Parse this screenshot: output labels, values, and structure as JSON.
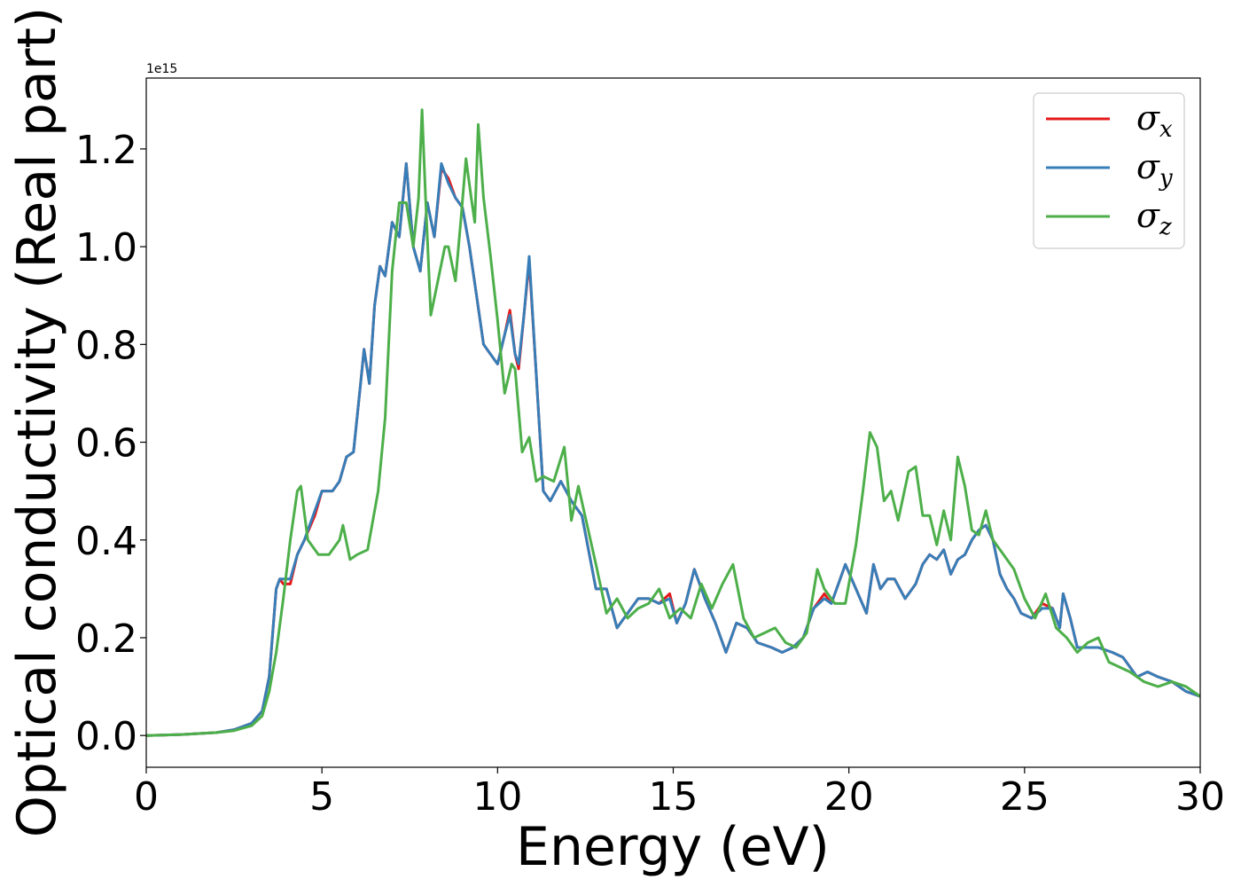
{
  "chart_data": {
    "type": "line",
    "title": "",
    "xlabel": "Energy (eV)",
    "ylabel": "Optical conductivity (Real part)",
    "y_offset_text": "1e15",
    "xlim": [
      0,
      30
    ],
    "ylim": [
      -0.065,
      1.345
    ],
    "x_ticks": [
      0,
      5,
      10,
      15,
      20,
      25,
      30
    ],
    "x_tick_labels": [
      "0",
      "5",
      "10",
      "15",
      "20",
      "25",
      "30"
    ],
    "y_ticks": [
      0.0,
      0.2,
      0.4,
      0.6,
      0.8,
      1.0,
      1.2
    ],
    "y_tick_labels": [
      "0.0",
      "0.2",
      "0.4",
      "0.6",
      "0.8",
      "1.0",
      "1.2"
    ],
    "grid": false,
    "legend_position": "top-right",
    "series": [
      {
        "name": "σx",
        "symbol": "σ",
        "subscript": "x",
        "color": "#e41a1c",
        "x": [
          0,
          1,
          2,
          2.5,
          3,
          3.3,
          3.5,
          3.7,
          3.8,
          3.9,
          4.1,
          4.3,
          4.5,
          4.8,
          5.0,
          5.3,
          5.5,
          5.7,
          5.9,
          6.1,
          6.2,
          6.35,
          6.5,
          6.65,
          6.8,
          7.0,
          7.2,
          7.4,
          7.6,
          7.8,
          8.0,
          8.2,
          8.4,
          8.6,
          8.8,
          9.0,
          9.2,
          9.4,
          9.6,
          9.8,
          10.0,
          10.2,
          10.35,
          10.5,
          10.6,
          10.75,
          10.9,
          11.1,
          11.3,
          11.5,
          11.8,
          12.1,
          12.4,
          12.8,
          13.1,
          13.4,
          13.7,
          14.0,
          14.3,
          14.6,
          14.9,
          15.1,
          15.35,
          15.6,
          15.9,
          16.2,
          16.5,
          16.8,
          17.1,
          17.4,
          17.8,
          18.1,
          18.4,
          18.7,
          19.0,
          19.3,
          19.5,
          19.7,
          19.9,
          20.2,
          20.5,
          20.7,
          20.9,
          21.1,
          21.3,
          21.6,
          21.9,
          22.1,
          22.3,
          22.5,
          22.7,
          22.9,
          23.1,
          23.3,
          23.5,
          23.7,
          23.9,
          24.1,
          24.3,
          24.5,
          24.7,
          24.9,
          25.2,
          25.5,
          25.8,
          26.0,
          26.1,
          26.3,
          26.5,
          26.8,
          27.1,
          27.5,
          27.8,
          28.2,
          28.5,
          28.8,
          29.2,
          29.6,
          30
        ],
        "y": [
          0,
          0.002,
          0.006,
          0.012,
          0.025,
          0.05,
          0.12,
          0.3,
          0.32,
          0.31,
          0.31,
          0.37,
          0.4,
          0.45,
          0.5,
          0.5,
          0.52,
          0.57,
          0.58,
          0.72,
          0.79,
          0.72,
          0.88,
          0.96,
          0.94,
          1.05,
          1.02,
          1.17,
          1.0,
          0.95,
          1.09,
          1.02,
          1.16,
          1.14,
          1.1,
          1.08,
          1.0,
          0.9,
          0.8,
          0.78,
          0.76,
          0.82,
          0.87,
          0.78,
          0.75,
          0.86,
          0.97,
          0.74,
          0.5,
          0.48,
          0.52,
          0.48,
          0.45,
          0.3,
          0.3,
          0.22,
          0.25,
          0.28,
          0.28,
          0.27,
          0.29,
          0.23,
          0.27,
          0.34,
          0.28,
          0.23,
          0.17,
          0.23,
          0.22,
          0.19,
          0.18,
          0.17,
          0.18,
          0.2,
          0.26,
          0.29,
          0.27,
          0.31,
          0.35,
          0.3,
          0.25,
          0.35,
          0.3,
          0.32,
          0.32,
          0.28,
          0.31,
          0.35,
          0.37,
          0.36,
          0.38,
          0.33,
          0.36,
          0.37,
          0.4,
          0.42,
          0.43,
          0.4,
          0.33,
          0.3,
          0.28,
          0.25,
          0.24,
          0.27,
          0.26,
          0.22,
          0.29,
          0.24,
          0.18,
          0.18,
          0.18,
          0.17,
          0.16,
          0.12,
          0.13,
          0.12,
          0.11,
          0.09,
          0.08
        ]
      },
      {
        "name": "σy",
        "symbol": "σ",
        "subscript": "y",
        "color": "#377eb8",
        "x": [
          0,
          1,
          2,
          2.5,
          3,
          3.3,
          3.5,
          3.7,
          3.8,
          3.9,
          4.1,
          4.3,
          4.5,
          4.8,
          5.0,
          5.3,
          5.5,
          5.7,
          5.9,
          6.1,
          6.2,
          6.35,
          6.5,
          6.65,
          6.8,
          7.0,
          7.2,
          7.4,
          7.6,
          7.8,
          8.0,
          8.2,
          8.4,
          8.6,
          8.8,
          9.0,
          9.2,
          9.4,
          9.6,
          9.8,
          10.0,
          10.2,
          10.35,
          10.5,
          10.6,
          10.75,
          10.9,
          11.1,
          11.3,
          11.5,
          11.8,
          12.1,
          12.4,
          12.8,
          13.1,
          13.4,
          13.7,
          14.0,
          14.3,
          14.6,
          14.9,
          15.1,
          15.35,
          15.6,
          15.9,
          16.2,
          16.5,
          16.8,
          17.1,
          17.4,
          17.8,
          18.1,
          18.4,
          18.7,
          19.0,
          19.3,
          19.5,
          19.7,
          19.9,
          20.2,
          20.5,
          20.7,
          20.9,
          21.1,
          21.3,
          21.6,
          21.9,
          22.1,
          22.3,
          22.5,
          22.7,
          22.9,
          23.1,
          23.3,
          23.5,
          23.7,
          23.9,
          24.1,
          24.3,
          24.5,
          24.7,
          24.9,
          25.2,
          25.5,
          25.8,
          26.0,
          26.1,
          26.3,
          26.5,
          26.8,
          27.1,
          27.5,
          27.8,
          28.2,
          28.5,
          28.8,
          29.2,
          29.6,
          30
        ],
        "y": [
          0,
          0.002,
          0.006,
          0.012,
          0.025,
          0.05,
          0.12,
          0.3,
          0.32,
          0.32,
          0.32,
          0.37,
          0.4,
          0.46,
          0.5,
          0.5,
          0.52,
          0.57,
          0.58,
          0.72,
          0.79,
          0.72,
          0.88,
          0.96,
          0.94,
          1.05,
          1.02,
          1.17,
          1.0,
          0.95,
          1.09,
          1.02,
          1.17,
          1.13,
          1.1,
          1.08,
          1.0,
          0.9,
          0.8,
          0.78,
          0.76,
          0.82,
          0.86,
          0.78,
          0.76,
          0.86,
          0.98,
          0.74,
          0.5,
          0.48,
          0.52,
          0.48,
          0.45,
          0.3,
          0.3,
          0.22,
          0.25,
          0.28,
          0.28,
          0.27,
          0.28,
          0.23,
          0.27,
          0.34,
          0.28,
          0.23,
          0.17,
          0.23,
          0.22,
          0.19,
          0.18,
          0.17,
          0.18,
          0.2,
          0.26,
          0.28,
          0.27,
          0.31,
          0.35,
          0.3,
          0.25,
          0.35,
          0.3,
          0.32,
          0.32,
          0.28,
          0.31,
          0.35,
          0.37,
          0.36,
          0.38,
          0.33,
          0.36,
          0.37,
          0.4,
          0.42,
          0.43,
          0.4,
          0.33,
          0.3,
          0.28,
          0.25,
          0.24,
          0.26,
          0.26,
          0.22,
          0.29,
          0.24,
          0.18,
          0.18,
          0.18,
          0.17,
          0.16,
          0.12,
          0.13,
          0.12,
          0.11,
          0.09,
          0.08
        ]
      },
      {
        "name": "σz",
        "symbol": "σ",
        "subscript": "z",
        "color": "#4daf4a",
        "x": [
          0,
          1,
          2,
          2.5,
          3,
          3.3,
          3.5,
          3.7,
          3.9,
          4.1,
          4.3,
          4.4,
          4.6,
          4.9,
          5.2,
          5.5,
          5.6,
          5.8,
          6.0,
          6.3,
          6.6,
          6.8,
          7.0,
          7.2,
          7.4,
          7.6,
          7.75,
          7.85,
          7.95,
          8.1,
          8.3,
          8.5,
          8.6,
          8.8,
          8.95,
          9.1,
          9.25,
          9.35,
          9.45,
          9.6,
          9.8,
          10.0,
          10.2,
          10.4,
          10.5,
          10.7,
          10.9,
          11.1,
          11.3,
          11.6,
          11.9,
          12.1,
          12.3,
          12.8,
          13.1,
          13.4,
          13.7,
          14.0,
          14.3,
          14.6,
          14.9,
          15.2,
          15.5,
          15.8,
          16.1,
          16.4,
          16.7,
          17.0,
          17.3,
          17.6,
          17.9,
          18.2,
          18.5,
          18.8,
          19.1,
          19.3,
          19.6,
          19.9,
          20.2,
          20.4,
          20.6,
          20.8,
          21.0,
          21.2,
          21.4,
          21.7,
          21.9,
          22.1,
          22.3,
          22.5,
          22.7,
          22.9,
          23.1,
          23.3,
          23.5,
          23.7,
          23.9,
          24.1,
          24.4,
          24.7,
          25.0,
          25.3,
          25.6,
          25.9,
          26.2,
          26.5,
          26.8,
          27.1,
          27.4,
          27.7,
          28.0,
          28.4,
          28.8,
          29.2,
          29.6,
          30
        ],
        "y": [
          0,
          0.002,
          0.006,
          0.01,
          0.02,
          0.04,
          0.09,
          0.17,
          0.28,
          0.4,
          0.5,
          0.51,
          0.4,
          0.37,
          0.37,
          0.4,
          0.43,
          0.36,
          0.37,
          0.38,
          0.5,
          0.65,
          0.95,
          1.09,
          1.09,
          1.0,
          1.1,
          1.28,
          1.1,
          0.86,
          0.93,
          1.0,
          1.0,
          0.93,
          1.05,
          1.18,
          1.1,
          1.05,
          1.25,
          1.1,
          0.98,
          0.85,
          0.7,
          0.76,
          0.75,
          0.58,
          0.61,
          0.52,
          0.53,
          0.52,
          0.59,
          0.44,
          0.51,
          0.35,
          0.25,
          0.28,
          0.24,
          0.26,
          0.27,
          0.3,
          0.24,
          0.26,
          0.24,
          0.31,
          0.26,
          0.31,
          0.35,
          0.24,
          0.2,
          0.21,
          0.22,
          0.19,
          0.18,
          0.21,
          0.34,
          0.3,
          0.27,
          0.27,
          0.39,
          0.5,
          0.62,
          0.59,
          0.48,
          0.5,
          0.44,
          0.54,
          0.55,
          0.45,
          0.45,
          0.39,
          0.46,
          0.4,
          0.57,
          0.51,
          0.42,
          0.41,
          0.46,
          0.4,
          0.37,
          0.34,
          0.28,
          0.24,
          0.29,
          0.22,
          0.2,
          0.17,
          0.19,
          0.2,
          0.15,
          0.14,
          0.13,
          0.11,
          0.1,
          0.11,
          0.1,
          0.08
        ]
      }
    ]
  }
}
